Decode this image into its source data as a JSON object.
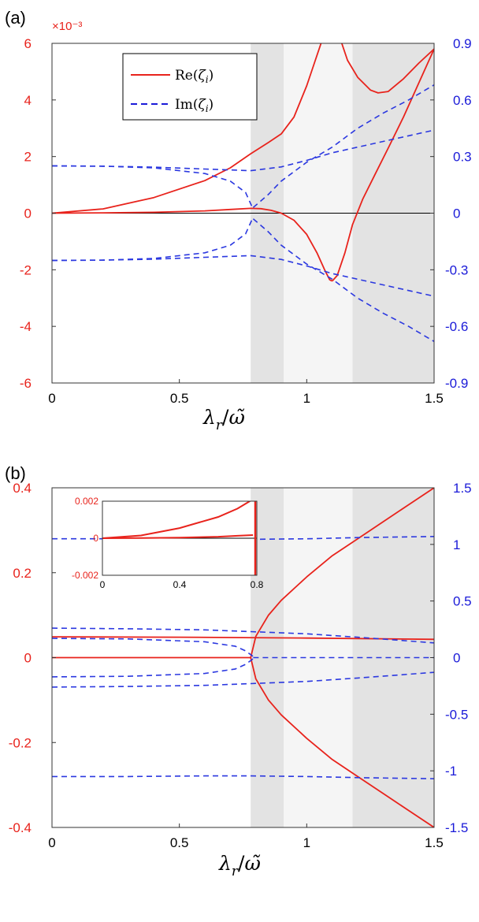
{
  "chart_data": [
    {
      "panel_label": "(a)",
      "type": "line",
      "scale_label": "×10⁻³",
      "x_label_html": "λ_r/ω̃",
      "xlim": [
        0,
        1.5
      ],
      "ylim_left": [
        -6,
        6
      ],
      "ylim_right": [
        -0.9,
        0.9
      ],
      "x_ticks": [
        "0",
        "0.5",
        "1",
        "1.5"
      ],
      "left_ticks": [
        "6",
        "4",
        "2",
        "0",
        "-2",
        "-4",
        "-6"
      ],
      "right_ticks": [
        "0.9",
        "0.6",
        "0.3",
        "0",
        "-0.3",
        "-0.6",
        "-0.9"
      ],
      "shaded_regions": [
        {
          "x0": 0.78,
          "x1": 0.91,
          "tone": "dark"
        },
        {
          "x0": 0.91,
          "x1": 1.18,
          "tone": "light"
        },
        {
          "x0": 1.18,
          "x1": 1.5,
          "tone": "dark"
        }
      ],
      "legend": [
        {
          "label": "Re(ζ_i)",
          "style": "solid",
          "color": "#e8231c"
        },
        {
          "label": "Im(ζ_i)",
          "style": "dashed",
          "color": "#1a1ad8"
        }
      ],
      "series": [
        {
          "axis": "left",
          "style": "solid",
          "x": [
            0,
            0.2,
            0.4,
            0.6,
            0.7,
            0.78,
            0.85,
            0.9,
            0.95,
            1.0,
            1.03,
            1.06,
            1.08,
            1.1
          ],
          "y": [
            0,
            0.15,
            0.55,
            1.15,
            1.6,
            2.1,
            2.5,
            2.8,
            3.4,
            4.5,
            5.3,
            6.1,
            6.5,
            6.9
          ]
        },
        {
          "axis": "left",
          "style": "solid",
          "x": [
            1.1,
            1.13,
            1.16,
            1.2,
            1.25,
            1.28,
            1.32,
            1.38,
            1.44,
            1.5
          ],
          "y": [
            6.9,
            6.2,
            5.4,
            4.8,
            4.35,
            4.25,
            4.3,
            4.75,
            5.3,
            5.8
          ]
        },
        {
          "axis": "left",
          "style": "solid",
          "x": [
            0,
            0.2,
            0.4,
            0.6,
            0.7,
            0.78,
            0.82,
            0.86,
            0.9,
            0.95,
            1.0,
            1.04,
            1.07,
            1.09,
            1.1
          ],
          "y": [
            0,
            0.01,
            0.03,
            0.08,
            0.13,
            0.17,
            0.16,
            0.1,
            0.0,
            -0.25,
            -0.75,
            -1.4,
            -2.0,
            -2.35,
            -2.4
          ]
        },
        {
          "axis": "left",
          "style": "solid",
          "x": [
            1.1,
            1.12,
            1.15,
            1.18,
            1.22,
            1.27,
            1.32,
            1.38,
            1.44,
            1.5
          ],
          "y": [
            -2.4,
            -2.2,
            -1.4,
            -0.4,
            0.5,
            1.4,
            2.3,
            3.4,
            4.6,
            5.8
          ]
        },
        {
          "axis": "right",
          "style": "dashed",
          "x": [
            0,
            0.2,
            0.4,
            0.6,
            0.7,
            0.76,
            0.79
          ],
          "y": [
            0.25,
            0.249,
            0.24,
            0.21,
            0.17,
            0.11,
            0.02
          ]
        },
        {
          "axis": "right",
          "style": "dashed",
          "x": [
            0,
            0.2,
            0.4,
            0.6,
            0.7,
            0.76,
            0.79
          ],
          "y": [
            -0.25,
            -0.249,
            -0.24,
            -0.21,
            -0.17,
            -0.11,
            -0.02
          ]
        },
        {
          "axis": "right",
          "style": "dashed",
          "x": [
            0,
            0.2,
            0.4,
            0.6,
            0.78,
            0.9,
            1.0,
            1.1,
            1.2,
            1.3,
            1.4,
            1.5
          ],
          "y": [
            0.251,
            0.249,
            0.244,
            0.234,
            0.225,
            0.245,
            0.28,
            0.32,
            0.35,
            0.38,
            0.41,
            0.44
          ]
        },
        {
          "axis": "right",
          "style": "dashed",
          "x": [
            0,
            0.2,
            0.4,
            0.6,
            0.78,
            0.9,
            1.0,
            1.1,
            1.2,
            1.3,
            1.4,
            1.5
          ],
          "y": [
            -0.251,
            -0.249,
            -0.244,
            -0.234,
            -0.225,
            -0.245,
            -0.28,
            -0.32,
            -0.35,
            -0.38,
            -0.41,
            -0.44
          ]
        },
        {
          "axis": "right",
          "style": "dashed",
          "x": [
            0.79,
            0.85,
            0.9,
            1.0,
            1.1,
            1.2,
            1.3,
            1.4,
            1.5
          ],
          "y": [
            0.03,
            0.1,
            0.17,
            0.27,
            0.35,
            0.45,
            0.53,
            0.6,
            0.68
          ]
        },
        {
          "axis": "right",
          "style": "dashed",
          "x": [
            0.79,
            0.85,
            0.9,
            1.0,
            1.1,
            1.2,
            1.3,
            1.4,
            1.5
          ],
          "y": [
            -0.03,
            -0.1,
            -0.17,
            -0.27,
            -0.35,
            -0.45,
            -0.53,
            -0.6,
            -0.68
          ]
        }
      ]
    },
    {
      "panel_label": "(b)",
      "type": "line",
      "x_label_html": "λ_r/ω̃",
      "xlim": [
        0,
        1.5
      ],
      "ylim_left": [
        -0.4,
        0.4
      ],
      "ylim_right": [
        -1.5,
        1.5
      ],
      "x_ticks": [
        "0",
        "0.5",
        "1",
        "1.5"
      ],
      "left_ticks": [
        "0.4",
        "0.2",
        "0",
        "-0.2",
        "-0.4"
      ],
      "right_ticks": [
        "1.5",
        "1",
        "0.5",
        "0",
        "-0.5",
        "-1",
        "-1.5"
      ],
      "shaded_regions": [
        {
          "x0": 0.78,
          "x1": 0.91,
          "tone": "dark"
        },
        {
          "x0": 0.91,
          "x1": 1.18,
          "tone": "light"
        },
        {
          "x0": 1.18,
          "x1": 1.5,
          "tone": "dark"
        }
      ],
      "series": [
        {
          "axis": "left",
          "style": "solid",
          "x": [
            0.78,
            0.8,
            0.85,
            0.9,
            1.0,
            1.1,
            1.2,
            1.3,
            1.4,
            1.5
          ],
          "y": [
            0,
            0.05,
            0.1,
            0.135,
            0.19,
            0.24,
            0.28,
            0.32,
            0.36,
            0.4
          ]
        },
        {
          "axis": "left",
          "style": "solid",
          "x": [
            0.78,
            0.8,
            0.85,
            0.9,
            1.0,
            1.1,
            1.2,
            1.3,
            1.4,
            1.5
          ],
          "y": [
            0,
            -0.05,
            -0.1,
            -0.135,
            -0.19,
            -0.24,
            -0.28,
            -0.32,
            -0.36,
            -0.4
          ]
        },
        {
          "axis": "left",
          "style": "solid",
          "x": [
            0,
            0.5,
            1.0,
            1.5
          ],
          "y": [
            0.049,
            0.048,
            0.046,
            0.043
          ]
        },
        {
          "axis": "left",
          "style": "solid",
          "x": [
            0,
            0.78
          ],
          "y": [
            0,
            0
          ]
        },
        {
          "axis": "right",
          "style": "dashed",
          "x": [
            0,
            0.3,
            0.6,
            0.78,
            1.0,
            1.2,
            1.5
          ],
          "y": [
            1.05,
            1.05,
            1.045,
            1.045,
            1.05,
            1.06,
            1.07
          ]
        },
        {
          "axis": "right",
          "style": "dashed",
          "x": [
            0,
            0.3,
            0.6,
            0.78,
            1.0,
            1.2,
            1.5
          ],
          "y": [
            -1.05,
            -1.05,
            -1.045,
            -1.045,
            -1.05,
            -1.06,
            -1.07
          ]
        },
        {
          "axis": "right",
          "style": "dashed",
          "x": [
            0,
            0.3,
            0.6,
            0.78,
            1.0,
            1.2,
            1.5
          ],
          "y": [
            0.26,
            0.255,
            0.245,
            0.23,
            0.21,
            0.18,
            0.13
          ]
        },
        {
          "axis": "right",
          "style": "dashed",
          "x": [
            0,
            0.3,
            0.6,
            0.78,
            1.0,
            1.2,
            1.5
          ],
          "y": [
            -0.26,
            -0.255,
            -0.245,
            -0.23,
            -0.21,
            -0.18,
            -0.13
          ]
        },
        {
          "axis": "right",
          "style": "dashed",
          "x": [
            0,
            0.3,
            0.6,
            0.72,
            0.76,
            0.79
          ],
          "y": [
            0.17,
            0.165,
            0.14,
            0.1,
            0.06,
            0.01
          ]
        },
        {
          "axis": "right",
          "style": "dashed",
          "x": [
            0,
            0.3,
            0.6,
            0.72,
            0.76,
            0.79
          ],
          "y": [
            -0.17,
            -0.165,
            -0.14,
            -0.1,
            -0.06,
            -0.01
          ]
        },
        {
          "axis": "right",
          "style": "dashed",
          "x": [
            0.79,
            1.5
          ],
          "y": [
            0.0,
            0.0
          ]
        }
      ],
      "inset": {
        "xlim": [
          0,
          0.8
        ],
        "ylim": [
          -0.002,
          0.002
        ],
        "x_ticks": [
          "0",
          "0.4",
          "0.8"
        ],
        "y_ticks": [
          "0.002",
          "0",
          "-0.002"
        ],
        "series": [
          {
            "x": [
              0,
              0.2,
              0.4,
              0.6,
              0.7,
              0.78
            ],
            "y": [
              0,
              0.00015,
              0.00055,
              0.00115,
              0.0016,
              0.0021
            ]
          },
          {
            "x": [
              0,
              0.2,
              0.4,
              0.6,
              0.7,
              0.78
            ],
            "y": [
              0,
              1e-05,
              3e-05,
              8e-05,
              0.00013,
              0.00017
            ]
          }
        ]
      }
    }
  ]
}
